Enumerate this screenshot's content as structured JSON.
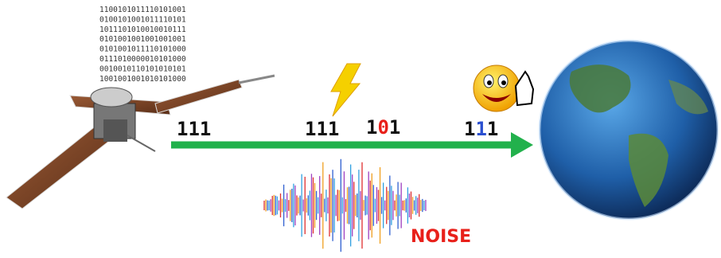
{
  "binary_block": {
    "lines": [
      "1100101011110101001",
      "0100101001011110101",
      "1011101010010010111",
      "0101001001001001001",
      "0101001011110101000",
      "0111010000010101000",
      "0010010110101010101",
      "1001001001010101000"
    ]
  },
  "sent": {
    "label": "111"
  },
  "before_noise": {
    "label": "111"
  },
  "corrupted": {
    "digits": [
      "1",
      "0",
      "1"
    ]
  },
  "corrected": {
    "digits": [
      "1",
      "1",
      "1"
    ]
  },
  "noise": {
    "label": "NOISE"
  }
}
